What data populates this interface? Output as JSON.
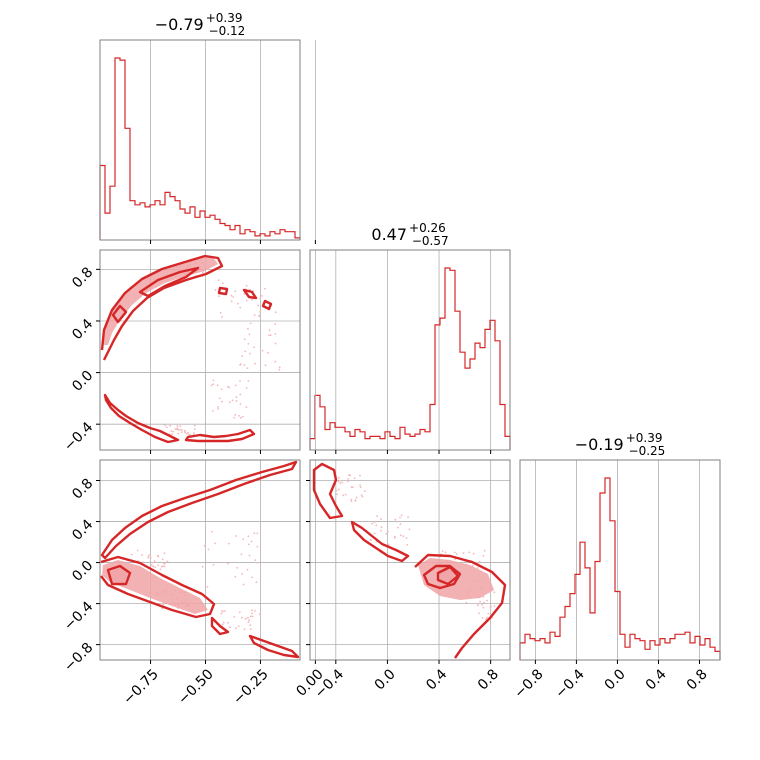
{
  "chart_data": {
    "type": "corner",
    "color": "#d62728",
    "axis_ranges": {
      "p0": [
        -0.98,
        -0.07
      ],
      "p1": [
        -0.6,
        0.95
      ],
      "p2": [
        -0.95,
        1.0
      ]
    },
    "ticks": {
      "p0": [
        -0.75,
        -0.5,
        -0.25,
        0.0
      ],
      "p1": [
        -0.4,
        0.0,
        0.4,
        0.8
      ],
      "p2": [
        -0.8,
        -0.4,
        0.0,
        0.4,
        0.8
      ]
    },
    "tick_labels": {
      "p0": [
        "−0.75",
        "−0.50",
        "−0.25",
        "0.00"
      ],
      "p1": [
        "−0.4",
        "0.0",
        "0.4",
        "0.8"
      ],
      "p2": [
        "−0.8",
        "−0.4",
        "0.0",
        "0.4",
        "0.8"
      ]
    },
    "titles": {
      "p0": {
        "median": "−0.79",
        "plus": "+0.39",
        "minus": "−0.12"
      },
      "p1": {
        "median": "0.47",
        "plus": "+0.26",
        "minus": "−0.57"
      },
      "p2": {
        "median": "−0.19",
        "plus": "+0.39",
        "minus": "−0.25"
      }
    },
    "histograms": {
      "p0": [
        0.36,
        0.13,
        0.26,
        0.88,
        0.87,
        0.54,
        0.19,
        0.17,
        0.18,
        0.16,
        0.17,
        0.19,
        0.17,
        0.23,
        0.21,
        0.19,
        0.15,
        0.13,
        0.16,
        0.11,
        0.14,
        0.11,
        0.12,
        0.1,
        0.08,
        0.07,
        0.05,
        0.07,
        0.03,
        0.05,
        0.04,
        0.02,
        0.03,
        0.02,
        0.04,
        0.03,
        0.05,
        0.04,
        0.04,
        0.01
      ],
      "p1": [
        0.05,
        0.24,
        0.19,
        0.09,
        0.12,
        0.1,
        0.1,
        0.08,
        0.06,
        0.09,
        0.08,
        0.05,
        0.06,
        0.06,
        0.05,
        0.08,
        0.06,
        0.05,
        0.1,
        0.07,
        0.06,
        0.07,
        0.09,
        0.08,
        0.2,
        0.55,
        0.58,
        0.8,
        0.79,
        0.61,
        0.43,
        0.36,
        0.4,
        0.47,
        0.45,
        0.53,
        0.57,
        0.48,
        0.2,
        0.06
      ],
      "p2": [
        0.08,
        0.12,
        0.1,
        0.09,
        0.1,
        0.08,
        0.13,
        0.11,
        0.2,
        0.25,
        0.31,
        0.4,
        0.55,
        0.43,
        0.22,
        0.46,
        0.78,
        0.85,
        0.65,
        0.32,
        0.12,
        0.06,
        0.12,
        0.1,
        0.09,
        0.05,
        0.09,
        0.07,
        0.1,
        0.08,
        0.1,
        0.12,
        0.12,
        0.13,
        0.08,
        0.11,
        0.07,
        0.1,
        0.06,
        0.04
      ]
    },
    "grid": true
  }
}
